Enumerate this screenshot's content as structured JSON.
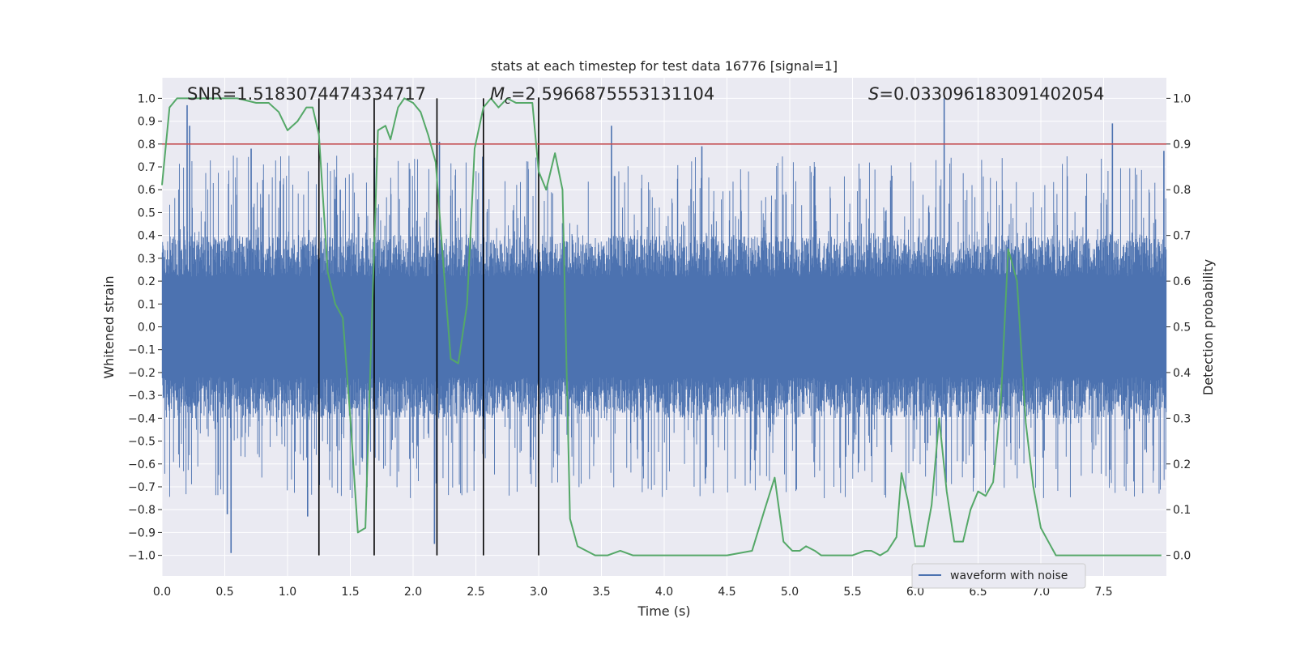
{
  "chart_data": {
    "type": "line",
    "title": "stats at each timestep for test data 16776 [signal=1]",
    "xlabel": "Time (s)",
    "ylabel_left": "Whitened strain",
    "ylabel_right": "Detection probability",
    "xlim": [
      0,
      8
    ],
    "ylim_left": [
      -1.09,
      1.09
    ],
    "ylim_right": [
      -0.045,
      1.045
    ],
    "x_ticks": [
      "0.0",
      "0.5",
      "1.0",
      "1.5",
      "2.0",
      "2.5",
      "3.0",
      "3.5",
      "4.0",
      "4.5",
      "5.0",
      "5.5",
      "6.0",
      "6.5",
      "7.0",
      "7.5"
    ],
    "y_left_ticks": [
      "1.0",
      "0.9",
      "0.8",
      "0.7",
      "0.6",
      "0.5",
      "0.4",
      "0.3",
      "0.2",
      "0.1",
      "0.0",
      "−0.1",
      "−0.2",
      "−0.3",
      "−0.4",
      "−0.5",
      "−0.6",
      "−0.7",
      "−0.8",
      "−0.9",
      "−1.0"
    ],
    "y_right_ticks": [
      "1.0",
      "0.9",
      "0.8",
      "0.7",
      "0.6",
      "0.5",
      "0.4",
      "0.3",
      "0.2",
      "0.1",
      "0.0"
    ],
    "grid": true,
    "legend": {
      "placement": "lower-right",
      "entries": [
        "waveform with noise"
      ]
    },
    "annotations": {
      "snr": "SNR=1.5183074474334717",
      "mc_symbol": "M",
      "mc_sub": "c",
      "mc_value": "=2.5966875553131104",
      "s_symbol": "S",
      "s_value": "=0.033096183091402054"
    },
    "threshold": {
      "y_right": 0.9,
      "color": "#c44e52"
    },
    "vertical_lines_x": [
      1.25,
      1.69,
      2.19,
      2.56,
      3.0
    ],
    "waveform": {
      "name": "waveform with noise",
      "color": "#4c72b0",
      "envelope_left_axis": 0.4,
      "notable_peaks": [
        {
          "x": 0.2,
          "y": 0.97
        },
        {
          "x": 0.22,
          "y": 0.88
        },
        {
          "x": 0.55,
          "y": -0.99
        },
        {
          "x": 0.52,
          "y": -0.82
        },
        {
          "x": 0.71,
          "y": 0.78
        },
        {
          "x": 1.16,
          "y": -0.83
        },
        {
          "x": 1.42,
          "y": 0.6
        },
        {
          "x": 2.17,
          "y": -0.95
        },
        {
          "x": 2.21,
          "y": 0.81
        },
        {
          "x": 3.58,
          "y": 0.88
        },
        {
          "x": 4.3,
          "y": 0.79
        },
        {
          "x": 6.23,
          "y": 1.0
        },
        {
          "x": 7.57,
          "y": 0.89
        },
        {
          "x": 7.98,
          "y": 0.77
        }
      ]
    },
    "detection_probability": {
      "color": "#55a868",
      "x": [
        0.0,
        0.06,
        0.12,
        0.2,
        0.3,
        0.45,
        0.6,
        0.75,
        0.85,
        0.93,
        1.0,
        1.08,
        1.15,
        1.2,
        1.25,
        1.32,
        1.38,
        1.44,
        1.5,
        1.56,
        1.62,
        1.67,
        1.72,
        1.78,
        1.82,
        1.88,
        1.93,
        2.0,
        2.06,
        2.12,
        2.18,
        2.24,
        2.3,
        2.36,
        2.43,
        2.49,
        2.56,
        2.62,
        2.68,
        2.75,
        2.82,
        2.88,
        2.95,
        3.0,
        3.06,
        3.13,
        3.19,
        3.25,
        3.31,
        3.38,
        3.45,
        3.55,
        3.65,
        3.75,
        3.85,
        3.95,
        4.1,
        4.3,
        4.5,
        4.7,
        4.8,
        4.88,
        4.95,
        5.02,
        5.08,
        5.13,
        5.2,
        5.25,
        5.35,
        5.5,
        5.6,
        5.65,
        5.72,
        5.78,
        5.85,
        5.89,
        5.94,
        6.0,
        6.07,
        6.13,
        6.19,
        6.25,
        6.31,
        6.38,
        6.44,
        6.5,
        6.56,
        6.62,
        6.68,
        6.74,
        6.81,
        6.88,
        6.94,
        7.0,
        7.06,
        7.12,
        7.2,
        7.4,
        7.6,
        7.8,
        7.96
      ],
      "values": [
        0.81,
        0.98,
        1.0,
        1.0,
        1.0,
        1.0,
        1.0,
        0.99,
        0.99,
        0.97,
        0.93,
        0.95,
        0.98,
        0.98,
        0.92,
        0.62,
        0.55,
        0.52,
        0.3,
        0.05,
        0.06,
        0.5,
        0.93,
        0.94,
        0.91,
        0.98,
        1.0,
        0.99,
        0.97,
        0.92,
        0.86,
        0.64,
        0.43,
        0.42,
        0.55,
        0.89,
        0.98,
        1.0,
        0.98,
        1.0,
        0.99,
        0.99,
        0.99,
        0.84,
        0.8,
        0.88,
        0.8,
        0.08,
        0.02,
        0.01,
        0.0,
        0.0,
        0.01,
        0.0,
        0.0,
        0.0,
        0.0,
        0.0,
        0.0,
        0.01,
        0.1,
        0.17,
        0.03,
        0.01,
        0.01,
        0.02,
        0.01,
        0.0,
        0.0,
        0.0,
        0.01,
        0.01,
        0.0,
        0.01,
        0.04,
        0.18,
        0.12,
        0.02,
        0.02,
        0.11,
        0.3,
        0.14,
        0.03,
        0.03,
        0.1,
        0.14,
        0.13,
        0.16,
        0.33,
        0.67,
        0.6,
        0.29,
        0.15,
        0.06,
        0.03,
        0.0,
        0.0,
        0.0,
        0.0,
        0.0,
        0.0
      ]
    }
  }
}
